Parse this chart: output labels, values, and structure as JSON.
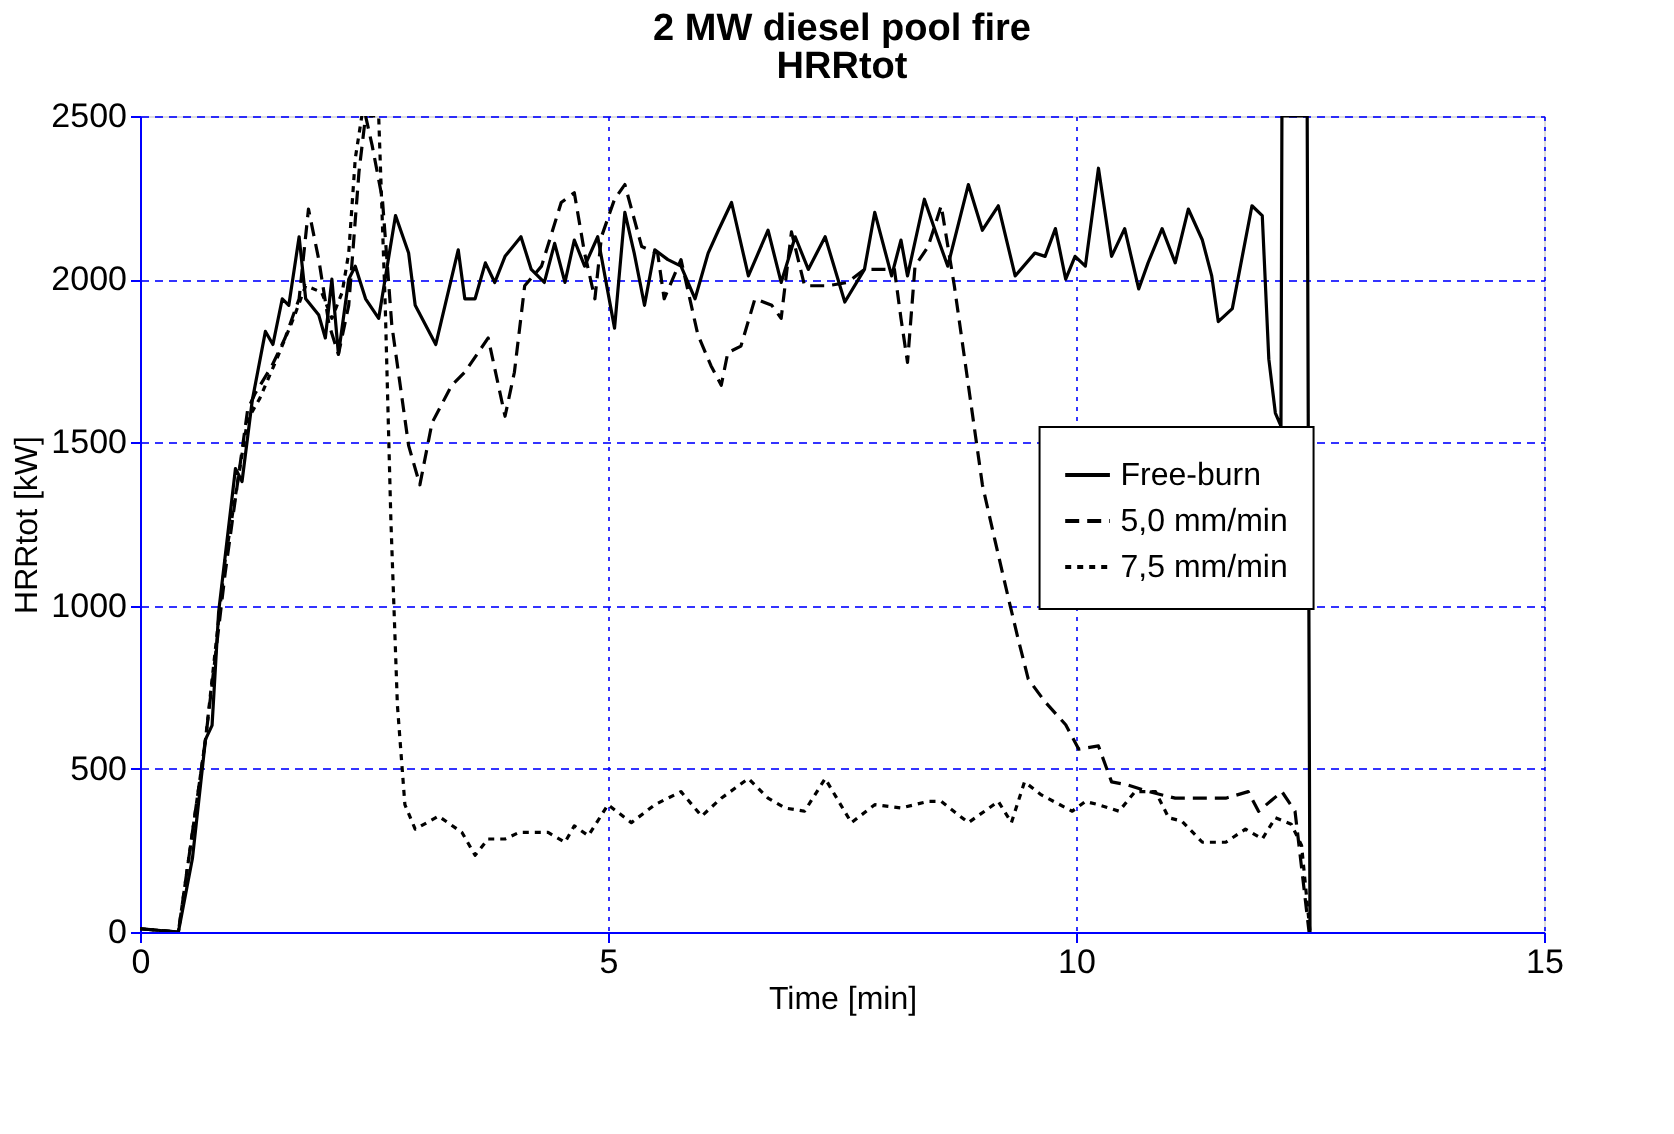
{
  "chart_data": {
    "type": "line",
    "title": "2 MW diesel pool fire",
    "subtitle": "HRRtot",
    "xlabel": "Time [min]",
    "ylabel": "HRRtot [kW]",
    "xlim": [
      0,
      15
    ],
    "xticks": [
      0,
      5,
      10,
      15
    ],
    "ylim": [
      0,
      2500
    ],
    "yticks": [
      0,
      500,
      1000,
      1500,
      2000,
      2500
    ],
    "grid": true,
    "legend": "right",
    "series": [
      {
        "name": "Free-burn",
        "color": "#000000",
        "line_style": "solid",
        "x": [
          0,
          0.41,
          0.56,
          0.7,
          0.77,
          0.84,
          1.02,
          1.09,
          1.2,
          1.34,
          1.42,
          1.52,
          1.59,
          1.7,
          1.77,
          1.91,
          1.98,
          2.05,
          2.12,
          2.23,
          2.3,
          2.41,
          2.55,
          2.73,
          2.87,
          2.94,
          3.16,
          3.4,
          3.47,
          3.58,
          3.69,
          3.79,
          3.9,
          4.07,
          4.18,
          4.32,
          4.43,
          4.54,
          4.64,
          4.75,
          4.89,
          5.07,
          5.18,
          5.28,
          5.39,
          5.5,
          5.64,
          5.78,
          5.93,
          6.07,
          6.18,
          6.32,
          6.5,
          6.71,
          6.85,
          7.0,
          7.14,
          7.32,
          7.53,
          7.74,
          7.85,
          8.03,
          8.13,
          8.2,
          8.38,
          8.53,
          8.63,
          8.85,
          9.0,
          9.17,
          9.35,
          9.56,
          9.67,
          9.78,
          9.89,
          9.99,
          10.1,
          10.24,
          10.38,
          10.52,
          10.67,
          10.77,
          10.92,
          11.06,
          11.2,
          11.35,
          11.45,
          11.52,
          11.67,
          11.88,
          11.99,
          12.06,
          12.13,
          12.19,
          12.2,
          12.47,
          12.5
        ],
        "values": [
          10,
          0,
          225,
          590,
          633,
          980,
          1420,
          1380,
          1630,
          1840,
          1800,
          1940,
          1920,
          2130,
          1940,
          1890,
          1820,
          2000,
          1770,
          2000,
          2040,
          1940,
          1880,
          2195,
          2080,
          1920,
          1800,
          2090,
          1940,
          1940,
          2050,
          1990,
          2070,
          2130,
          2030,
          1990,
          2110,
          1990,
          2120,
          2040,
          2130,
          1850,
          2205,
          2080,
          1920,
          2090,
          2060,
          2040,
          1940,
          2080,
          2150,
          2235,
          2010,
          2150,
          1990,
          2130,
          2030,
          2130,
          1930,
          2030,
          2205,
          2010,
          2120,
          2010,
          2245,
          2120,
          2040,
          2290,
          2150,
          2225,
          2010,
          2080,
          2070,
          2155,
          2000,
          2070,
          2040,
          2340,
          2070,
          2155,
          1970,
          2050,
          2155,
          2050,
          2215,
          2120,
          2010,
          1870,
          1910,
          2225,
          2195,
          1755,
          1590,
          1550,
          2500,
          2500,
          0
        ]
      },
      {
        "name": "5,0 mm/min",
        "color": "#000000",
        "line_style": "dashed",
        "x": [
          0,
          0.41,
          0.7,
          0.91,
          1.15,
          1.23,
          1.41,
          1.55,
          1.7,
          1.8,
          1.91,
          2.02,
          2.12,
          2.23,
          2.34,
          2.41,
          2.48,
          2.59,
          2.69,
          2.87,
          2.99,
          3.12,
          3.33,
          3.47,
          3.72,
          3.9,
          4.0,
          4.11,
          4.29,
          4.5,
          4.64,
          4.75,
          4.86,
          4.93,
          5.07,
          5.18,
          5.36,
          5.53,
          5.6,
          5.78,
          5.96,
          6.1,
          6.21,
          6.28,
          6.42,
          6.57,
          6.75,
          6.85,
          6.96,
          7.1,
          7.35,
          7.56,
          7.74,
          8.06,
          8.13,
          8.2,
          8.28,
          8.42,
          8.56,
          8.7,
          8.85,
          9.0,
          9.13,
          9.28,
          9.38,
          9.49,
          9.67,
          9.89,
          10.03,
          10.24,
          10.38,
          10.56,
          10.78,
          11.06,
          11.35,
          11.6,
          11.84,
          11.95,
          12.2,
          12.34,
          12.49
        ],
        "values": [
          10,
          0,
          590,
          1100,
          1600,
          1650,
          1735,
          1820,
          1940,
          2215,
          2060,
          1860,
          1770,
          1920,
          2330,
          2500,
          2410,
          2245,
          1860,
          1490,
          1370,
          1560,
          1675,
          1715,
          1820,
          1580,
          1715,
          1980,
          2040,
          2235,
          2265,
          2080,
          1940,
          2130,
          2245,
          2290,
          2100,
          2080,
          1940,
          2060,
          1830,
          1735,
          1675,
          1775,
          1795,
          1940,
          1920,
          1880,
          2145,
          1980,
          1980,
          1990,
          2030,
          2030,
          1880,
          1745,
          2040,
          2100,
          2225,
          1980,
          1675,
          1370,
          1205,
          1020,
          900,
          775,
          705,
          635,
          560,
          570,
          460,
          450,
          430,
          410,
          410,
          410,
          430,
          370,
          430,
          370,
          0
        ]
      },
      {
        "name": "7,5 mm/min",
        "color": "#000000",
        "line_style": "dotted",
        "x": [
          0,
          0.41,
          0.7,
          0.91,
          1.15,
          1.28,
          1.46,
          1.64,
          1.77,
          1.94,
          2.05,
          2.16,
          2.23,
          2.3,
          2.37,
          2.55,
          2.62,
          2.68,
          2.75,
          2.83,
          2.94,
          3.19,
          3.44,
          3.58,
          3.72,
          3.9,
          4.05,
          4.36,
          4.54,
          4.64,
          4.79,
          5.0,
          5.25,
          5.5,
          5.78,
          6.0,
          6.21,
          6.5,
          6.71,
          6.89,
          7.1,
          7.32,
          7.6,
          7.85,
          8.13,
          8.42,
          8.56,
          8.85,
          9.17,
          9.31,
          9.45,
          9.63,
          9.96,
          10.1,
          10.24,
          10.46,
          10.63,
          10.85,
          10.99,
          11.13,
          11.35,
          11.6,
          11.81,
          11.99,
          12.13,
          12.3,
          12.41,
          12.5
        ],
        "values": [
          10,
          0,
          590,
          1140,
          1570,
          1635,
          1755,
          1880,
          1980,
          1960,
          1880,
          1960,
          2080,
          2370,
          2500,
          2500,
          1920,
          1265,
          695,
          390,
          315,
          355,
          305,
          235,
          285,
          285,
          305,
          305,
          275,
          325,
          295,
          390,
          335,
          390,
          430,
          355,
          410,
          470,
          410,
          380,
          370,
          470,
          335,
          390,
          380,
          400,
          400,
          335,
          400,
          335,
          460,
          420,
          370,
          400,
          390,
          370,
          430,
          430,
          350,
          340,
          275,
          275,
          315,
          285,
          350,
          330,
          265,
          0
        ]
      }
    ]
  }
}
